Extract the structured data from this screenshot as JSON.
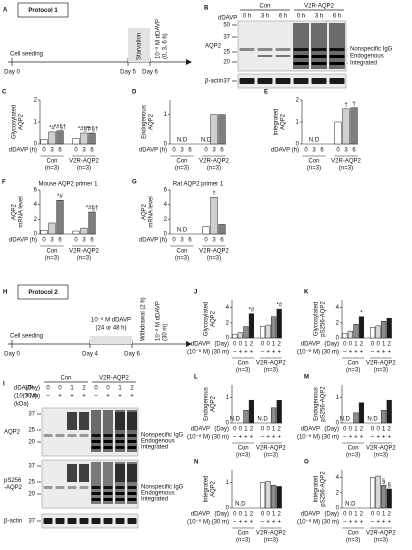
{
  "protocol1": {
    "letter": "A",
    "title": "Protocol 1",
    "seeding": "Cell seeding",
    "days": [
      "Day 0",
      "Day 5",
      "Day 6"
    ],
    "starvation": "Starvation",
    "treatment": [
      "10⁻⁸ M dDAVP",
      "(0, 3, 6 h)"
    ]
  },
  "blot1": {
    "letter": "B",
    "treatment": "dDAVP",
    "groups": [
      "Con",
      "V2R-AQP2"
    ],
    "lanes": [
      "0 h",
      "3 h",
      "6 h",
      "0 h",
      "3 h",
      "6 h"
    ],
    "rows": [
      {
        "name": "AQP2",
        "markers": [
          50,
          37,
          25,
          20
        ]
      },
      {
        "name": "β-actin",
        "markers": [
          37
        ]
      }
    ],
    "bands": [
      "Nonspecific IgG",
      "Endogenous",
      "Integrated"
    ]
  },
  "protocol2": {
    "letter": "H",
    "title": "Protocol 2",
    "seeding": "Cell seeding",
    "days": [
      "Day 0",
      "Day 4",
      "Day 6"
    ],
    "treatment": [
      "10⁻⁸ M dDAVP",
      "(24 or 48 h)"
    ],
    "withdrawal": "Withdrawal (2 h)",
    "second": [
      "10⁻⁸ M dDAVP",
      "(30 m)"
    ]
  },
  "blot2": {
    "letter": "I",
    "groups": [
      "Con",
      "V2R-AQP2"
    ],
    "header": [
      {
        "label": [
          "dDAVP",
          "(Day)"
        ],
        "values": [
          "0",
          "0",
          "1",
          "2",
          "0",
          "0",
          "1",
          "2"
        ]
      },
      {
        "label": [
          "(10⁻⁸ M)",
          "(30 m)"
        ],
        "values": [
          "–",
          "+",
          "+",
          "+",
          "–",
          "+",
          "+",
          "+"
        ]
      }
    ],
    "unit": "(kDa)",
    "rows": [
      {
        "name": [
          "AQP2"
        ],
        "markers": [
          37,
          25,
          20
        ]
      },
      {
        "name": [
          "pS256",
          "-AQP2"
        ],
        "markers": [
          37,
          25,
          20
        ]
      },
      {
        "name": [
          "β-actin"
        ],
        "markers": [
          37
        ]
      }
    ],
    "bands": [
      "Nonspecific IgG",
      "Endogenous",
      "Integrated"
    ]
  },
  "charts": [
    {
      "type": "bar",
      "letter": "C",
      "ylabel": [
        "Glycosylated",
        "AQP2"
      ],
      "ylim": [
        0,
        2
      ],
      "yticks": [
        0,
        1,
        2
      ],
      "values": [
        0.2,
        0.55,
        0.6,
        0.25,
        0.5,
        0.5
      ],
      "labels": [
        null,
        "*#",
        "*#§†",
        null,
        "*#§†",
        "*#§†"
      ],
      "colors": [
        "#ffffff",
        "#cfcfcf",
        "#7f7f7f"
      ],
      "xrows": [
        {
          "label": "dDAVP (h)",
          "values": [
            "0",
            "3",
            "6",
            "0",
            "3",
            "6"
          ]
        }
      ],
      "groups": [
        [
          "Con",
          "(n=3)"
        ],
        [
          "V2R-AQP2",
          "(n=3)"
        ]
      ]
    },
    {
      "type": "bar",
      "letter": "D",
      "ylabel": [
        "Endogenous",
        "AQP2"
      ],
      "ylim": [
        0,
        1.5
      ],
      "yticks": [
        0,
        1
      ],
      "values": [
        null,
        null,
        null,
        null,
        1.0,
        1.0
      ],
      "labels": [
        null,
        "N.D",
        null,
        "N.D",
        null,
        null
      ],
      "colors": [
        "#ffffff",
        "#cfcfcf",
        "#7f7f7f"
      ],
      "xrows": [
        {
          "label": "dDAVP (h)",
          "values": [
            "0",
            "3",
            "6",
            "0",
            "3",
            "6"
          ]
        }
      ],
      "groups": [
        [
          "Con",
          "(n=3)"
        ],
        [
          "V2R-AQP2",
          "(n=3)"
        ]
      ]
    },
    {
      "type": "bar",
      "letter": "E",
      "ylabel": [
        "Integrated",
        "AQP2"
      ],
      "ylim": [
        0,
        2
      ],
      "yticks": [
        0,
        1,
        2
      ],
      "values": [
        null,
        null,
        null,
        1.0,
        1.6,
        1.65
      ],
      "labels": [
        null,
        "N.D",
        null,
        null,
        "†",
        "†"
      ],
      "colors": [
        "#ffffff",
        "#cfcfcf",
        "#7f7f7f"
      ],
      "xrows": [
        {
          "label": "dDAVP (h)",
          "values": [
            "0",
            "3",
            "6",
            "0",
            "3",
            "6"
          ]
        }
      ],
      "groups": [
        [
          "Con",
          "(n=3)"
        ],
        [
          "V2R-AQP2",
          "(n=3)"
        ]
      ]
    },
    {
      "type": "bar",
      "letter": "F",
      "title": "Mouse AQP2 primer 1",
      "ylabel": [
        "AQP2",
        "mRNA level"
      ],
      "ylim": [
        0,
        6
      ],
      "yticks": [
        0,
        2,
        4,
        6
      ],
      "values": [
        0.5,
        1.5,
        4.6,
        0.4,
        0.8,
        3.0
      ],
      "labels": [
        null,
        null,
        "*#",
        null,
        null,
        "*#§†"
      ],
      "colors": [
        "#ffffff",
        "#cfcfcf",
        "#7f7f7f"
      ],
      "xrows": [
        {
          "label": "dDAVP (h)",
          "values": [
            "0",
            "3",
            "6",
            "0",
            "3",
            "6"
          ]
        }
      ],
      "groups": [
        [
          "Con",
          "(n=3)"
        ],
        [
          "V2R-AQP2",
          "(n=3)"
        ]
      ]
    },
    {
      "type": "bar",
      "letter": "G",
      "title": "Rat AQP2 primer 1",
      "ylabel": [
        "AQP2",
        "mRNA level"
      ],
      "ylim": [
        0,
        6
      ],
      "yticks": [
        0,
        2,
        4,
        6
      ],
      "values": [
        null,
        null,
        null,
        1.0,
        5.0,
        1.3
      ],
      "labels": [
        null,
        "N.D",
        null,
        null,
        "†",
        null
      ],
      "colors": [
        "#ffffff",
        "#cfcfcf",
        "#7f7f7f"
      ],
      "xrows": [
        {
          "label": "dDAVP (h)",
          "values": [
            "0",
            "3",
            "6",
            "0",
            "3",
            "6"
          ]
        }
      ],
      "groups": [
        [
          "Con",
          "(n=3)"
        ],
        [
          "V2R-AQP2",
          "(n=3)"
        ]
      ]
    },
    {
      "type": "bar",
      "letter": "J",
      "ylabel": [
        "Glycosylated",
        "AQP2"
      ],
      "ylim": [
        0,
        5
      ],
      "yticks": [
        0,
        2,
        4
      ],
      "values": [
        0.5,
        0.7,
        1.5,
        3.2,
        1.5,
        1.7,
        2.8,
        3.8
      ],
      "labels": [
        null,
        null,
        null,
        "*#",
        null,
        null,
        null,
        "*#"
      ],
      "colors": [
        "#ffffff",
        "#d9d9d9",
        "#8c8c8c",
        "#1a1a1a"
      ],
      "xtitle": [
        "dDAVP",
        "(10⁻⁸ M)"
      ],
      "xrows": [
        {
          "label": "(Day)",
          "values": [
            "0",
            "0",
            "1",
            "2",
            "0",
            "0",
            "1",
            "2"
          ]
        },
        {
          "label": "(30 m)",
          "values": [
            "–",
            "+",
            "+",
            "+",
            "–",
            "+",
            "+",
            "+"
          ]
        }
      ],
      "groups": [
        [
          "Con",
          "(n=3)"
        ],
        [
          "V2R-AQP2",
          "(n=3)"
        ]
      ]
    },
    {
      "type": "bar",
      "letter": "K",
      "ylabel": [
        "Glycosylated",
        "pS256-AQP2"
      ],
      "ylim": [
        0,
        5
      ],
      "yticks": [
        0,
        2,
        4
      ],
      "values": [
        0.6,
        0.9,
        1.8,
        2.8,
        1.4,
        1.6,
        2.2,
        2.6
      ],
      "labels": [
        null,
        null,
        null,
        "*",
        null,
        null,
        null,
        null
      ],
      "colors": [
        "#ffffff",
        "#d9d9d9",
        "#8c8c8c",
        "#1a1a1a"
      ],
      "xtitle": [
        "dDAVP",
        "(10⁻⁸ M)"
      ],
      "xrows": [
        {
          "label": "(Day)",
          "values": [
            "0",
            "0",
            "1",
            "2",
            "0",
            "0",
            "1",
            "2"
          ]
        },
        {
          "label": "(30 m)",
          "values": [
            "–",
            "+",
            "+",
            "+",
            "–",
            "+",
            "+",
            "+"
          ]
        }
      ],
      "groups": [
        [
          "Con",
          "(n=3)"
        ],
        [
          "V2R-AQP2",
          "(n=3)"
        ]
      ]
    },
    {
      "type": "bar",
      "letter": "L",
      "ylabel": [
        "Endogenous",
        "AQP2"
      ],
      "ylim": [
        0,
        1.5
      ],
      "yticks": [
        0,
        1
      ],
      "values": [
        null,
        null,
        0.5,
        0.9,
        null,
        null,
        0.6,
        0.9
      ],
      "labels": [
        "N.D",
        null,
        null,
        null,
        "N.D",
        null,
        null,
        null
      ],
      "colors": [
        "#ffffff",
        "#d9d9d9",
        "#8c8c8c",
        "#1a1a1a"
      ],
      "xtitle": [
        "dDAVP",
        "(10⁻⁸ M)"
      ],
      "xrows": [
        {
          "label": "(Day)",
          "values": [
            "0",
            "0",
            "1",
            "2",
            "0",
            "0",
            "1",
            "2"
          ]
        },
        {
          "label": "(30 m)",
          "values": [
            "–",
            "+",
            "+",
            "+",
            "–",
            "+",
            "+",
            "+"
          ]
        }
      ],
      "groups": [
        [
          "Con",
          "(n=3)"
        ],
        [
          "V2R-AQP2",
          "(n=3)"
        ]
      ]
    },
    {
      "type": "bar",
      "letter": "M",
      "ylabel": [
        "Endogenous",
        "pS256-AQP2"
      ],
      "ylim": [
        0,
        1.5
      ],
      "yticks": [
        0,
        1
      ],
      "values": [
        null,
        null,
        0.4,
        0.8,
        null,
        null,
        0.5,
        0.9
      ],
      "labels": [
        "N.D",
        null,
        null,
        null,
        "N.D",
        null,
        null,
        null
      ],
      "colors": [
        "#ffffff",
        "#d9d9d9",
        "#8c8c8c",
        "#1a1a1a"
      ],
      "xtitle": [
        "dDAVP",
        "(10⁻⁸ M)"
      ],
      "xrows": [
        {
          "label": "(Day)",
          "values": [
            "0",
            "0",
            "1",
            "2",
            "0",
            "0",
            "1",
            "2"
          ]
        },
        {
          "label": "(30 m)",
          "values": [
            "–",
            "+",
            "+",
            "+",
            "–",
            "+",
            "+",
            "+"
          ]
        }
      ],
      "groups": [
        [
          "Con",
          "(n=3)"
        ],
        [
          "V2R-AQP2",
          "(n=3)"
        ]
      ]
    },
    {
      "type": "bar",
      "letter": "N",
      "ylabel": [
        "Integrated",
        "AQP2"
      ],
      "ylim": [
        0,
        1.5
      ],
      "yticks": [
        0,
        1
      ],
      "values": [
        null,
        null,
        null,
        null,
        1.0,
        1.05,
        0.9,
        0.85
      ],
      "labels": [
        null,
        "N.D",
        null,
        null,
        null,
        null,
        null,
        null
      ],
      "colors": [
        "#ffffff",
        "#d9d9d9",
        "#8c8c8c",
        "#1a1a1a"
      ],
      "xtitle": [
        "dDAVP",
        "(10⁻⁸ M)"
      ],
      "xrows": [
        {
          "label": "(Day)",
          "values": [
            "0",
            "0",
            "1",
            "2",
            "0",
            "0",
            "1",
            "2"
          ]
        },
        {
          "label": "(30 m)",
          "values": [
            "–",
            "+",
            "+",
            "+",
            "–",
            "+",
            "+",
            "+"
          ]
        }
      ],
      "groups": [
        [
          "Con",
          "(n=3)"
        ],
        [
          "V2R-AQP2",
          "(n=3)"
        ]
      ]
    },
    {
      "type": "bar",
      "letter": "O",
      "ylabel": [
        "Integrated",
        "pS256-AQP2"
      ],
      "ylim": [
        0,
        5
      ],
      "yticks": [
        0,
        2,
        4
      ],
      "values": [
        null,
        null,
        null,
        null,
        4.0,
        4.2,
        3.0,
        2.5
      ],
      "labels": [
        null,
        "N.D",
        null,
        null,
        null,
        null,
        "§",
        "§"
      ],
      "colors": [
        "#ffffff",
        "#d9d9d9",
        "#8c8c8c",
        "#1a1a1a"
      ],
      "xtitle": [
        "dDAVP",
        "(10⁻⁸ M)"
      ],
      "xrows": [
        {
          "label": "(Day)",
          "values": [
            "0",
            "0",
            "1",
            "2",
            "0",
            "0",
            "1",
            "2"
          ]
        },
        {
          "label": "(30 m)",
          "values": [
            "–",
            "+",
            "+",
            "+",
            "–",
            "+",
            "+",
            "+"
          ]
        }
      ],
      "groups": [
        [
          "Con",
          "(n=3)"
        ],
        [
          "V2R-AQP2",
          "(n=3)"
        ]
      ]
    }
  ]
}
